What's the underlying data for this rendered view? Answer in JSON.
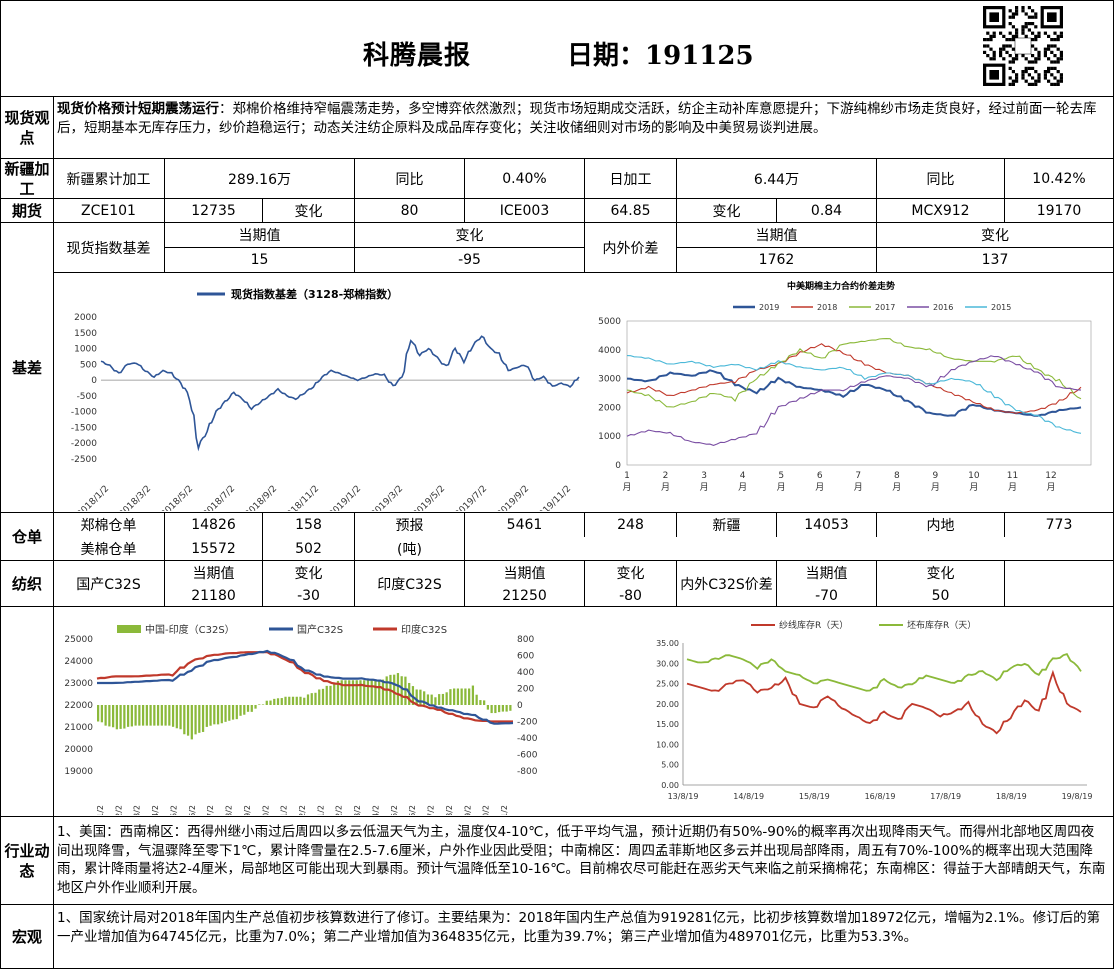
{
  "header": {
    "title": "科腾晨报",
    "date_label": "日期：",
    "date": "191125"
  },
  "spot_view": {
    "label": "现货观点",
    "headline": "现货价格预计短期震荡运行",
    "text": "：郑棉价格维持窄幅震荡走势，多空博弈依然激烈；现货市场短期成交活跃，纺企主动补库意愿提升；下游纯棉纱市场走货良好，经过前面一轮去库后，短期基本无库存压力，纱价趋稳运行；动态关注纺企原料及成品库存变化；关注收储细则对市场的影响及中美贸易谈判进展。"
  },
  "xinjiang": {
    "label": "新疆加工",
    "cells": [
      "新疆累计加工",
      "289.16万",
      "同比",
      "0.40%",
      "日加工",
      "6.44万",
      "同比",
      "10.42%"
    ]
  },
  "futures": {
    "label": "期货",
    "cells": [
      "ZCE101",
      "12735",
      "变化",
      "80",
      "ICE003",
      "64.85",
      "变化",
      "0.84",
      "MCX912",
      "19170"
    ]
  },
  "basis_table": {
    "left_title": "现货指数基差",
    "cur": "当期值",
    "chg": "变化",
    "left_cur": "15",
    "left_chg": "-95",
    "right_title": "内外价差",
    "right_cur": "1762",
    "right_chg": "137"
  },
  "basis": {
    "label": "基差"
  },
  "warehouse": {
    "label": "仓单",
    "row1": [
      "郑棉仓单",
      "14826",
      "158",
      "预报",
      "5461",
      "248",
      "新疆",
      "14053",
      "内地",
      "773"
    ],
    "row2": [
      "美棉仓单",
      "15572",
      "502",
      "(吨)"
    ]
  },
  "textile": {
    "label": "纺织",
    "cells": [
      "国产C32S",
      "当期值",
      "变化",
      "印度C32S",
      "当期值",
      "变化",
      "内外C32S价差",
      "当期值",
      "变化"
    ],
    "values": [
      "21180",
      "-30",
      "21250",
      "-80",
      "-70",
      "50"
    ]
  },
  "industry": {
    "label": "行业动态",
    "text": "1、美国：西南棉区：西得州继小雨过后周四以多云低温天气为主，温度仅4-10℃，低于平均气温，预计近期仍有50%-90%的概率再次出现降雨天气。而得州北部地区周四夜间出现降雪，气温骤降至零下1℃，累计降雪量在2.5-7.6厘米，户外作业因此受阻；中南棉区：周四孟菲斯地区多云并出现局部降雨，周五有70%-100%的概率出现大范围降雨，累计降雨量将达2-4厘米，局部地区可能出现大到暴雨。预计气温降低至10-16℃。目前棉农尽可能赶在恶劣天气来临之前采摘棉花；东南棉区：得益于大部晴朗天气，东南地区户外作业顺利开展。"
  },
  "macro": {
    "label": "宏观",
    "text": "1、国家统计局对2018年国内生产总值初步核算数进行了修订。主要结果为：2018年国内生产总值为919281亿元，比初步核算数增加18972亿元，增幅为2.1%。修订后的第一产业增加值为64745亿元，比重为7.0%；第二产业增加值为364835亿元，比重为39.7%；第三产业增加值为489701亿元，比重为53.3%。"
  },
  "colors": {
    "navy": "#2e5597",
    "red": "#c0392b",
    "green": "#8bb93a",
    "cyan": "#4bb8d8",
    "purple": "#7a4ea3",
    "gray": "#666666"
  },
  "chart_data": [
    {
      "type": "line",
      "title": "现货指数基差（3128-郑棉指数）",
      "series": [
        {
          "name": "现货指数基差（3128-郑棉指数）",
          "values": [
            600,
            450,
            200,
            500,
            550,
            300,
            100,
            300,
            200,
            -100,
            -500,
            -2100,
            -1600,
            -1000,
            -700,
            -400,
            -600,
            -900,
            -700,
            -500,
            -300,
            -500,
            -600,
            -400,
            -200,
            100,
            300,
            200,
            100,
            0,
            100,
            200,
            150,
            -200,
            100,
            1300,
            800,
            1000,
            700,
            400,
            1000,
            600,
            1100,
            1400,
            1000,
            800,
            300,
            400,
            500,
            0,
            100,
            -200,
            -100,
            -200,
            100
          ]
        }
      ],
      "ylim": [
        -2500,
        2000
      ],
      "yticks": [
        "2000",
        "1500",
        "1000",
        "500",
        "0",
        "-500",
        "-1000",
        "-1500",
        "-2000",
        "-2500"
      ],
      "xticks": [
        "2018/1/2",
        "2018/3/2",
        "2018/5/2",
        "2018/7/2",
        "2018/9/2",
        "2018/11/2",
        "2019/1/2",
        "2019/3/2",
        "2019/5/2",
        "2019/7/2",
        "2019/9/2",
        "2019/11/2"
      ]
    },
    {
      "type": "line",
      "title": "中美期棉主力合约价差走势",
      "ylim": [
        0,
        5000
      ],
      "yticks": [
        "5000",
        "4000",
        "3000",
        "2000",
        "1000",
        "0"
      ],
      "xticks": [
        "1",
        "2",
        "3",
        "4",
        "5",
        "6",
        "7",
        "8",
        "9",
        "10",
        "11",
        "12"
      ],
      "xunit": "月",
      "series": [
        {
          "name": "2019",
          "values": [
            3000,
            2900,
            3200,
            3100,
            3300,
            2800,
            2500,
            3000,
            2700,
            2600,
            2400,
            2800,
            2600,
            2200,
            1800,
            1700,
            2100,
            1900,
            1800,
            1700,
            1900,
            2000
          ]
        },
        {
          "name": "2018",
          "values": [
            2500,
            2700,
            2400,
            2600,
            2800,
            2900,
            3300,
            3500,
            3900,
            4200,
            3900,
            3500,
            3200,
            3100,
            2800,
            2500,
            2200,
            1900,
            1800,
            1900,
            2200,
            2700
          ]
        },
        {
          "name": "2017",
          "values": [
            2600,
            2400,
            2000,
            2200,
            2500,
            2300,
            3000,
            3500,
            4000,
            3700,
            4200,
            4300,
            4400,
            4100,
            4000,
            3700,
            3600,
            3600,
            3800,
            3300,
            2900,
            2300
          ]
        },
        {
          "name": "2016",
          "values": [
            1000,
            1200,
            1100,
            800,
            700,
            900,
            1100,
            2000,
            2300,
            2600,
            2600,
            2900,
            3100,
            3000,
            2700,
            3300,
            3600,
            3800,
            3500,
            3200,
            2700,
            2600
          ]
        },
        {
          "name": "2015",
          "values": [
            3800,
            3700,
            3500,
            3600,
            3400,
            3500,
            3300,
            3600,
            3400,
            3300,
            3400,
            3000,
            3200,
            3100,
            2800,
            3000,
            2900,
            2400,
            1900,
            1700,
            1300,
            1100
          ]
        }
      ]
    },
    {
      "type": "line",
      "legend": [
        "中国-印度（C32S）",
        "国产C32S",
        "印度C32S"
      ],
      "ylim": [
        19000,
        25000
      ],
      "y2lim": [
        -800,
        800
      ],
      "yticks": [
        "25000",
        "24000",
        "23000",
        "22000",
        "21000",
        "20000",
        "19000"
      ],
      "y2ticks": [
        "800",
        "600",
        "400",
        "200",
        "0",
        "-200",
        "-400",
        "-600",
        "-800"
      ],
      "xticks": [
        "18/1/2",
        "18/2/2",
        "18/3/2",
        "18/4/2",
        "18/5/2",
        "18/6/2",
        "18/7/2",
        "18/8/2",
        "18/9/2",
        "18/10/2",
        "18/11/2",
        "18/12/2",
        "19/1/2",
        "19/2/2",
        "19/3/2",
        "19/4/2",
        "19/5/2",
        "19/6/2",
        "19/7/2",
        "19/8/2",
        "19/9/2",
        "19/10/2",
        "19/11/2"
      ],
      "series": [
        {
          "name": "国产C32S",
          "values": [
            23000,
            23000,
            23050,
            23100,
            23150,
            23600,
            24000,
            24150,
            24300,
            24450,
            24200,
            23600,
            23300,
            23200,
            23200,
            23100,
            22900,
            22200,
            21900,
            21700,
            21500,
            21150,
            21180
          ]
        },
        {
          "name": "印度C32S",
          "values": [
            23200,
            23300,
            23300,
            23350,
            23400,
            24000,
            24250,
            24350,
            24400,
            24400,
            24100,
            23500,
            23100,
            22900,
            22900,
            22800,
            22500,
            22000,
            21800,
            21500,
            21300,
            21250,
            21250
          ]
        },
        {
          "name": "中国-印度（C32S）",
          "values": [
            -200,
            -300,
            -250,
            -250,
            -250,
            -400,
            -250,
            -200,
            -100,
            50,
            100,
            100,
            200,
            300,
            300,
            300,
            400,
            200,
            100,
            200,
            200,
            -100,
            -70
          ]
        }
      ]
    },
    {
      "type": "line",
      "legend": [
        "纱线库存R（天）",
        "坯布库存R（天）"
      ],
      "ylim": [
        0,
        35
      ],
      "yticks": [
        "35.00",
        "30.00",
        "25.00",
        "20.00",
        "15.00",
        "10.00",
        "5.00",
        "0.00"
      ],
      "xticks": [
        "13/8/19",
        "14/8/19",
        "15/8/19",
        "16/8/19",
        "17/8/19",
        "18/8/19",
        "19/8/19"
      ],
      "series": [
        {
          "name": "纱线库存R（天）",
          "values": [
            25,
            24,
            23,
            25,
            26,
            23,
            24,
            26,
            20,
            19,
            22,
            19,
            17,
            15,
            18,
            16,
            20,
            19,
            17,
            18,
            20,
            15,
            13,
            17,
            21,
            18,
            27,
            20,
            18
          ]
        },
        {
          "name": "坯布库存R（天）",
          "values": [
            31,
            30,
            31,
            32,
            31,
            29,
            31,
            28,
            27,
            25,
            26,
            25,
            24,
            23,
            26,
            24,
            25,
            27,
            26,
            25,
            27,
            28,
            26,
            29,
            30,
            27,
            31,
            32,
            28
          ]
        }
      ]
    }
  ]
}
